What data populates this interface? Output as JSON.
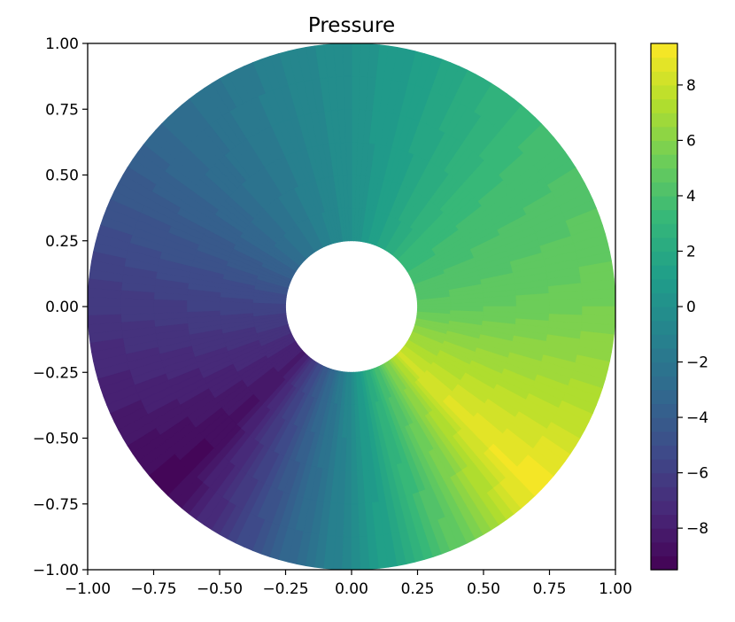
{
  "chart_data": {
    "type": "heatmap",
    "title": "Pressure",
    "xlabel": "",
    "ylabel": "",
    "xlim": [
      -1.0,
      1.0
    ],
    "ylim": [
      -1.0,
      1.0
    ],
    "x_ticks": [
      "−1.00",
      "−0.75",
      "−0.50",
      "−0.25",
      "0.00",
      "0.25",
      "0.50",
      "0.75",
      "1.00"
    ],
    "y_ticks": [
      "−1.00",
      "−0.75",
      "−0.50",
      "−0.25",
      "0.00",
      "0.25",
      "0.50",
      "0.75",
      "1.00"
    ],
    "domain": {
      "shape": "annulus",
      "center": [
        0.0,
        0.0
      ],
      "inner_radius": 0.25,
      "outer_radius": 1.0
    },
    "field": {
      "description": "filled contour of pressure over annulus",
      "min": -9.5,
      "max": 9.5,
      "angular_profile": {
        "angle_deg": [
          -135,
          -90,
          -45,
          0,
          45,
          90,
          135,
          180,
          225
        ],
        "value": [
          -9.5,
          -0.5,
          9.5,
          5.5,
          3.5,
          0.0,
          -3.0,
          -6.5,
          -9.5
        ]
      }
    },
    "colorbar": {
      "colormap": "viridis",
      "range": [
        -9.5,
        9.5
      ],
      "ticks": [
        -8,
        -6,
        -4,
        -2,
        0,
        2,
        4,
        6,
        8
      ],
      "tick_labels": [
        "−8",
        "−6",
        "−4",
        "−2",
        "0",
        "2",
        "4",
        "6",
        "8"
      ],
      "levels": 38
    },
    "grid": false
  }
}
